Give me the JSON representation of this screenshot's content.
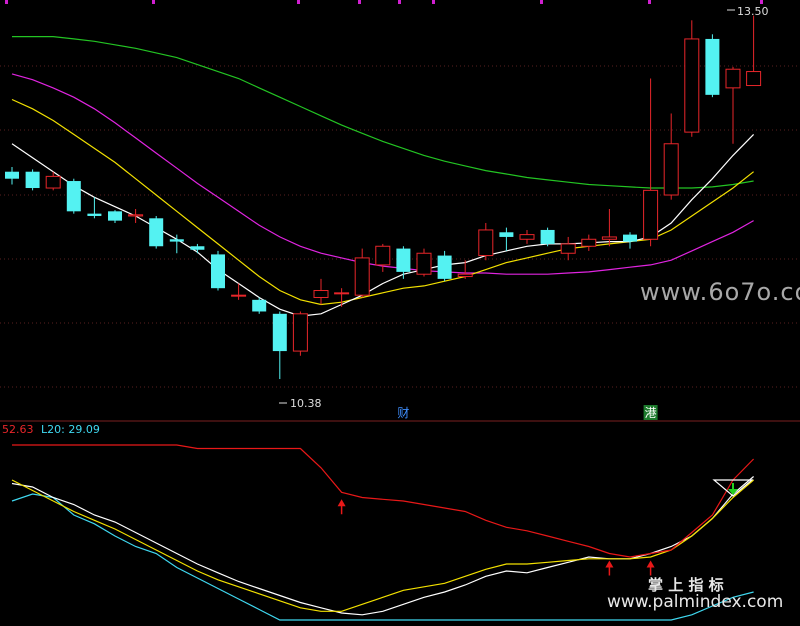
{
  "colors": {
    "up": "#e8262a",
    "down": "#54f2f2",
    "ma_white": "#ffffff",
    "ma_yellow": "#f2e000",
    "ma_magenta": "#e024e0",
    "ma_green": "#23c423",
    "red_line": "#e81818",
    "cyan_line": "#3fd8f0",
    "grid": "#5a1f1f",
    "text": "#dddddd",
    "l20": "#3fd8f0"
  },
  "price_annotations": {
    "high_label": "13.50",
    "low_label": "10.38"
  },
  "event_markers": [
    {
      "label": "财",
      "color": "#3f8fff",
      "index": 19
    },
    {
      "label": "港",
      "color": "#ffffff",
      "bg": "#1c7a2c",
      "index": 31
    }
  ],
  "indicator_header": {
    "value1": "52.63",
    "value1_color": "#e8262a",
    "l20_text": "L20: 29.09"
  },
  "watermarks": {
    "main": "www.6o7o.com",
    "sub_title": "掌 上 指 标",
    "sub_url": "www.palmindex.com"
  },
  "chart_data": {
    "type": "candlestick",
    "price_range": [
      10.2,
      13.6
    ],
    "candles": [
      {
        "o": 12.16,
        "c": 12.1,
        "h": 12.2,
        "l": 12.05
      },
      {
        "o": 12.16,
        "c": 12.02,
        "h": 12.18,
        "l": 12.0
      },
      {
        "o": 12.02,
        "c": 12.12,
        "h": 12.16,
        "l": 12.0
      },
      {
        "o": 12.08,
        "c": 11.82,
        "h": 12.1,
        "l": 11.8
      },
      {
        "o": 11.8,
        "c": 11.78,
        "h": 11.94,
        "l": 11.76
      },
      {
        "o": 11.82,
        "c": 11.74,
        "h": 11.83,
        "l": 11.72
      },
      {
        "o": 11.78,
        "c": 11.79,
        "h": 11.84,
        "l": 11.72
      },
      {
        "o": 11.76,
        "c": 11.52,
        "h": 11.78,
        "l": 11.5
      },
      {
        "o": 11.58,
        "c": 11.56,
        "h": 11.62,
        "l": 11.46
      },
      {
        "o": 11.52,
        "c": 11.49,
        "h": 11.54,
        "l": 11.46
      },
      {
        "o": 11.45,
        "c": 11.16,
        "h": 11.48,
        "l": 11.14
      },
      {
        "o": 11.1,
        "c": 11.1,
        "h": 11.2,
        "l": 11.06
      },
      {
        "o": 11.06,
        "c": 10.96,
        "h": 11.08,
        "l": 10.94
      },
      {
        "o": 10.94,
        "c": 10.62,
        "h": 10.96,
        "l": 10.38
      },
      {
        "o": 10.62,
        "c": 10.94,
        "h": 10.96,
        "l": 10.58
      },
      {
        "o": 11.08,
        "c": 11.14,
        "h": 11.24,
        "l": 11.02
      },
      {
        "o": 11.12,
        "c": 11.12,
        "h": 11.16,
        "l": 11.0
      },
      {
        "o": 11.1,
        "c": 11.42,
        "h": 11.5,
        "l": 11.08
      },
      {
        "o": 11.36,
        "c": 11.52,
        "h": 11.54,
        "l": 11.3
      },
      {
        "o": 11.5,
        "c": 11.3,
        "h": 11.52,
        "l": 11.24
      },
      {
        "o": 11.28,
        "c": 11.46,
        "h": 11.5,
        "l": 11.26
      },
      {
        "o": 11.44,
        "c": 11.24,
        "h": 11.48,
        "l": 11.22
      },
      {
        "o": 11.26,
        "c": 11.28,
        "h": 11.4,
        "l": 11.24
      },
      {
        "o": 11.44,
        "c": 11.66,
        "h": 11.72,
        "l": 11.4
      },
      {
        "o": 11.64,
        "c": 11.6,
        "h": 11.68,
        "l": 11.48
      },
      {
        "o": 11.58,
        "c": 11.62,
        "h": 11.66,
        "l": 11.54
      },
      {
        "o": 11.66,
        "c": 11.54,
        "h": 11.68,
        "l": 11.52
      },
      {
        "o": 11.46,
        "c": 11.54,
        "h": 11.6,
        "l": 11.4
      },
      {
        "o": 11.52,
        "c": 11.58,
        "h": 11.62,
        "l": 11.48
      },
      {
        "o": 11.58,
        "c": 11.6,
        "h": 11.84,
        "l": 11.52
      },
      {
        "o": 11.62,
        "c": 11.56,
        "h": 11.64,
        "l": 11.5
      },
      {
        "o": 11.58,
        "c": 12.0,
        "h": 12.96,
        "l": 11.52
      },
      {
        "o": 11.96,
        "c": 12.4,
        "h": 12.66,
        "l": 11.92
      },
      {
        "o": 12.5,
        "c": 13.3,
        "h": 13.46,
        "l": 12.46
      },
      {
        "o": 13.3,
        "c": 12.82,
        "h": 13.34,
        "l": 12.8
      },
      {
        "o": 12.88,
        "c": 13.04,
        "h": 13.06,
        "l": 12.4
      },
      {
        "o": 12.9,
        "c": 13.02,
        "h": 13.5,
        "l": 12.9
      }
    ],
    "ma_white": [
      12.4,
      12.28,
      12.16,
      12.04,
      11.94,
      11.86,
      11.78,
      11.68,
      11.58,
      11.47,
      11.32,
      11.2,
      11.08,
      10.98,
      10.92,
      10.94,
      11.02,
      11.1,
      11.2,
      11.28,
      11.32,
      11.36,
      11.38,
      11.44,
      11.48,
      11.52,
      11.54,
      11.54,
      11.55,
      11.56,
      11.56,
      11.6,
      11.72,
      11.92,
      12.1,
      12.3,
      12.48
    ],
    "ma_yellow": [
      12.78,
      12.7,
      12.6,
      12.48,
      12.36,
      12.24,
      12.1,
      11.96,
      11.82,
      11.68,
      11.54,
      11.4,
      11.26,
      11.14,
      11.06,
      11.02,
      11.04,
      11.08,
      11.12,
      11.16,
      11.18,
      11.22,
      11.26,
      11.32,
      11.38,
      11.42,
      11.46,
      11.5,
      11.52,
      11.54,
      11.56,
      11.58,
      11.66,
      11.78,
      11.9,
      12.02,
      12.16
    ],
    "ma_magenta": [
      13.0,
      12.95,
      12.88,
      12.8,
      12.7,
      12.58,
      12.45,
      12.32,
      12.19,
      12.06,
      11.94,
      11.82,
      11.7,
      11.6,
      11.52,
      11.46,
      11.42,
      11.38,
      11.35,
      11.33,
      11.31,
      11.3,
      11.29,
      11.29,
      11.28,
      11.28,
      11.28,
      11.29,
      11.3,
      11.32,
      11.34,
      11.36,
      11.4,
      11.48,
      11.56,
      11.64,
      11.74
    ],
    "ma_green": [
      13.32,
      13.32,
      13.32,
      13.3,
      13.28,
      13.25,
      13.22,
      13.18,
      13.14,
      13.08,
      13.02,
      12.96,
      12.88,
      12.8,
      12.72,
      12.64,
      12.56,
      12.49,
      12.42,
      12.36,
      12.3,
      12.25,
      12.21,
      12.17,
      12.14,
      12.11,
      12.09,
      12.07,
      12.05,
      12.04,
      12.03,
      12.02,
      12.02,
      12.02,
      12.03,
      12.05,
      12.08
    ],
    "indicator": {
      "value_range": [
        0,
        100
      ],
      "red": [
        100,
        100,
        100,
        100,
        100,
        100,
        100,
        100,
        100,
        98,
        98,
        98,
        98,
        98,
        98,
        87,
        73,
        70,
        69,
        68,
        66,
        64,
        62,
        57,
        53,
        51,
        48,
        45,
        42,
        38,
        36,
        38,
        40,
        50,
        60,
        80,
        92
      ],
      "white": [
        78,
        76,
        70,
        66,
        60,
        56,
        50,
        44,
        38,
        32,
        27,
        22,
        18,
        14,
        10,
        7,
        4,
        3,
        5,
        9,
        13,
        16,
        20,
        25,
        28,
        27,
        30,
        33,
        36,
        35,
        35,
        38,
        42,
        48,
        58,
        72,
        82
      ],
      "yellow": [
        80,
        74,
        68,
        62,
        57,
        52,
        46,
        40,
        34,
        28,
        23,
        19,
        15,
        11,
        7,
        5,
        5,
        9,
        13,
        17,
        19,
        21,
        25,
        29,
        32,
        32,
        33,
        34,
        35,
        35,
        35,
        36,
        40,
        48,
        58,
        70,
        80
      ],
      "cyan": [
        68,
        72,
        70,
        60,
        55,
        48,
        42,
        38,
        30,
        24,
        18,
        12,
        6,
        0,
        0,
        0,
        0,
        0,
        0,
        0,
        0,
        0,
        0,
        0,
        0,
        0,
        0,
        0,
        0,
        0,
        0,
        0,
        0,
        3,
        8,
        13,
        16
      ],
      "up_arrows": [
        16,
        29,
        31
      ],
      "down_arrows": [
        35
      ]
    }
  }
}
